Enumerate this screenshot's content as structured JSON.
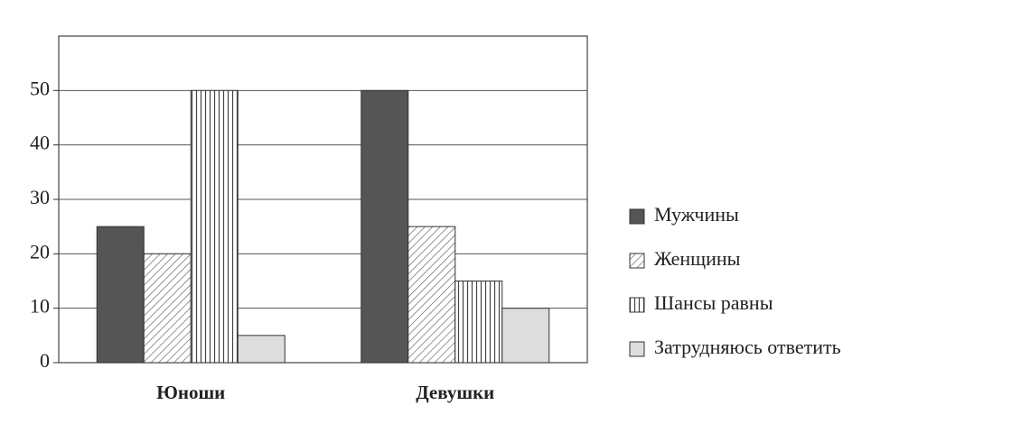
{
  "chart_data": {
    "type": "bar",
    "categories": [
      "Юноши",
      "Девушки"
    ],
    "series": [
      {
        "name": "Мужчины",
        "color": "#555555",
        "pattern": "solid",
        "values": [
          25,
          50
        ]
      },
      {
        "name": "Женщины",
        "color": "#444444",
        "pattern": "diagonal",
        "values": [
          20,
          25
        ]
      },
      {
        "name": "Шансы равны",
        "color": "#444444",
        "pattern": "vertical",
        "values": [
          50,
          15
        ]
      },
      {
        "name": "Затрудняюсь ответить",
        "color": "#dddddd",
        "pattern": "solid",
        "values": [
          5,
          10
        ]
      }
    ],
    "ylim": [
      0,
      60
    ],
    "yticks": [
      0,
      10,
      20,
      30,
      40,
      50
    ],
    "grid": true,
    "legend": "right"
  }
}
